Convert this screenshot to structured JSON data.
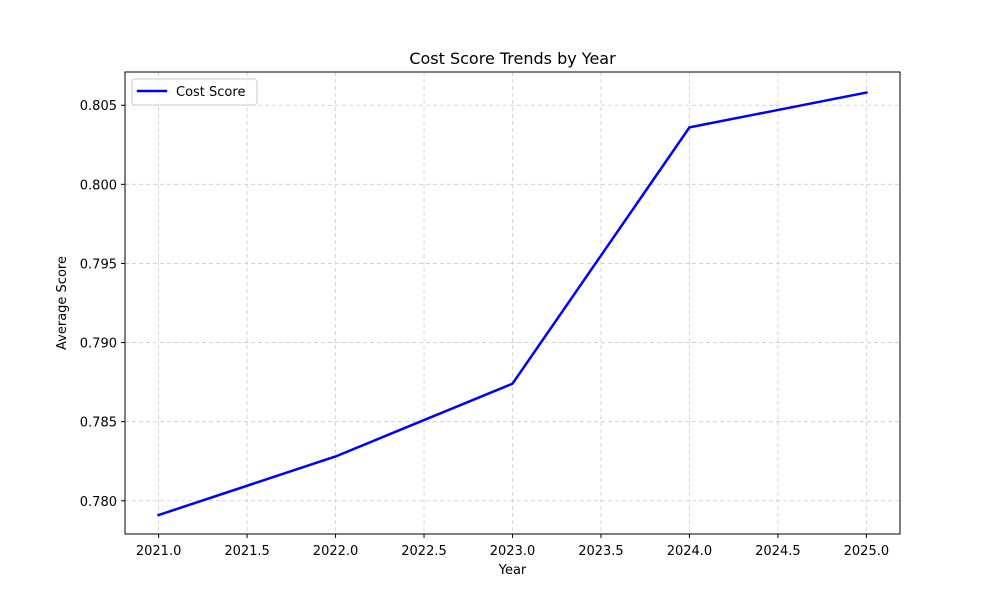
{
  "chart_data": {
    "type": "line",
    "title": "Cost Score Trends by Year",
    "xlabel": "Year",
    "ylabel": "Average Score",
    "x": [
      2021,
      2022,
      2023,
      2024,
      2025
    ],
    "series": [
      {
        "name": "Cost Score",
        "color": "#0000ff",
        "values": [
          0.7791,
          0.7828,
          0.7874,
          0.8036,
          0.8058
        ]
      }
    ],
    "xlim": [
      2020.81,
      2025.19
    ],
    "ylim": [
      0.7779,
      0.8071
    ],
    "xticks": [
      2021.0,
      2021.5,
      2022.0,
      2022.5,
      2023.0,
      2023.5,
      2024.0,
      2024.5,
      2025.0
    ],
    "xtick_labels": [
      "2021.0",
      "2021.5",
      "2022.0",
      "2022.5",
      "2023.0",
      "2023.5",
      "2024.0",
      "2024.5",
      "2025.0"
    ],
    "yticks": [
      0.78,
      0.785,
      0.79,
      0.795,
      0.8,
      0.805
    ],
    "ytick_labels": [
      "0.780",
      "0.785",
      "0.790",
      "0.795",
      "0.800",
      "0.805"
    ],
    "grid": true,
    "grid_style": "dashed",
    "grid_color": "#cccccc",
    "legend_position": "upper-left"
  }
}
